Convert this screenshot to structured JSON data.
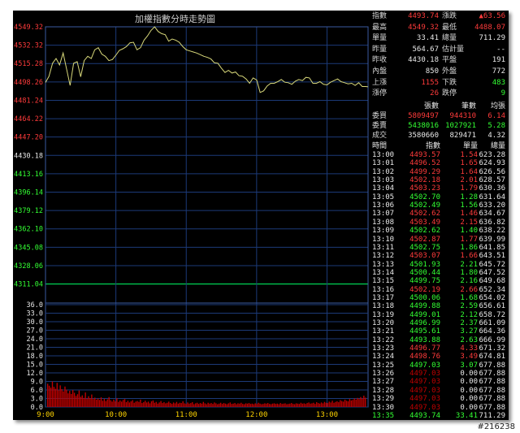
{
  "chart_data": {
    "type": "line",
    "title": "加權指數分時走勢圖",
    "xlabel": "",
    "ylabel": "",
    "ylim": [
      4303.2,
      4549.32
    ],
    "reference": 4311.04,
    "y_ticks": [
      {
        "v": 4549.32,
        "c": "red"
      },
      {
        "v": 4532.32,
        "c": "red"
      },
      {
        "v": 4515.28,
        "c": "red"
      },
      {
        "v": 4498.26,
        "c": "red"
      },
      {
        "v": 4481.24,
        "c": "red"
      },
      {
        "v": 4464.22,
        "c": "red"
      },
      {
        "v": 4447.2,
        "c": "red"
      },
      {
        "v": 4430.18,
        "c": "white"
      },
      {
        "v": 4413.16,
        "c": "green"
      },
      {
        "v": 4396.14,
        "c": "green"
      },
      {
        "v": 4379.12,
        "c": "green"
      },
      {
        "v": 4362.1,
        "c": "green"
      },
      {
        "v": 4345.08,
        "c": "green"
      },
      {
        "v": 4328.06,
        "c": "green"
      },
      {
        "v": 4311.04,
        "c": "green"
      }
    ],
    "x_ticks": [
      "9:00",
      "10:00",
      "11:00",
      "12:00",
      "13:00"
    ],
    "x_range_min": [
      0,
      275
    ],
    "series": [
      {
        "x": [
          0,
          3,
          6,
          9,
          12,
          15,
          18,
          21,
          24,
          27,
          30,
          33,
          36,
          39,
          42,
          45,
          48,
          51,
          54,
          57,
          60,
          63,
          66,
          69,
          72,
          75,
          78,
          81,
          84,
          87,
          90,
          93,
          96,
          99,
          102,
          105,
          108,
          111,
          114,
          117,
          120,
          123,
          126,
          129,
          132,
          135,
          138,
          141,
          144,
          147,
          150,
          153,
          156,
          159,
          162,
          165,
          168,
          171,
          174,
          177,
          180,
          183,
          186,
          189,
          192,
          195,
          198,
          201,
          204,
          207,
          210,
          213,
          216,
          219,
          222,
          225,
          228,
          231,
          234,
          237,
          240,
          243,
          246,
          249,
          252,
          255,
          258,
          261,
          264,
          267,
          270,
          273,
          275
        ],
        "y": [
          4497.8,
          4503.5,
          4515.5,
          4520.0,
          4514.0,
          4525.0,
          4510.0,
          4495.0,
          4515.5,
          4517.0,
          4503.0,
          4518.0,
          4522.0,
          4520.0,
          4528.0,
          4530.0,
          4524.0,
          4522.0,
          4518.0,
          4519.0,
          4523.0,
          4527.5,
          4529.0,
          4531.0,
          4534.5,
          4535.0,
          4528.0,
          4530.0,
          4537.0,
          4541.0,
          4546.0,
          4549.3,
          4545.0,
          4543.0,
          4542.0,
          4536.0,
          4538.0,
          4537.0,
          4535.0,
          4531.0,
          4528.0,
          4527.0,
          4526.0,
          4525.0,
          4523.5,
          4522.0,
          4521.0,
          4519.5,
          4516.0,
          4515.5,
          4511.0,
          4507.0,
          4509.0,
          4506.5,
          4507.5,
          4504.0,
          4503.5,
          4501.0,
          4497.0,
          4502.0,
          4500.0,
          4488.5,
          4490.0,
          4494.5,
          4497.0,
          4497.0,
          4498.5,
          4500.5,
          4498.0,
          4497.5,
          4496.0,
          4499.0,
          4500.5,
          4499.5,
          4502.5,
          4502.0,
          4497.0,
          4497.0,
          4498.5,
          4496.0,
          4495.5,
          4498.0,
          4499.5,
          4501.0,
          4498.5,
          4497.5,
          4496.5,
          4497.0,
          4495.0,
          4497.5,
          4494.0,
          4494.0,
          4493.7
        ]
      }
    ],
    "volume": {
      "ylim": [
        0,
        36
      ],
      "y_ticks": [
        "36.0",
        "33.0",
        "30.0",
        "27.0",
        "24.0",
        "21.0",
        "18.0",
        "15.0",
        "12.0",
        "9.0",
        "6.0",
        "3.0",
        "0.0"
      ],
      "values": [
        8.2,
        7.5,
        6.8,
        9.0,
        7.1,
        6.4,
        8.5,
        5.9,
        7.6,
        6.3,
        5.5,
        7.2,
        6.1,
        4.8,
        5.7,
        4.6,
        6.0,
        5.0,
        3.9,
        4.5,
        5.8,
        3.6,
        4.1,
        3.2,
        5.1,
        2.9,
        3.8,
        3.1,
        4.4,
        2.8,
        3.3,
        2.6,
        3.0,
        2.5,
        3.4,
        2.2,
        2.9,
        2.1,
        2.7,
        3.5,
        2.4,
        1.9,
        2.6,
        2.0,
        3.1,
        1.8,
        2.3,
        1.9,
        2.5,
        2.8,
        1.7,
        2.2,
        1.6,
        2.0,
        2.4,
        1.5,
        1.9,
        2.1,
        1.8,
        2.6,
        1.4,
        1.7,
        2.2,
        1.6,
        1.9,
        1.3,
        2.0,
        2.3,
        1.5,
        1.8,
        1.2,
        1.6,
        2.1,
        1.4,
        1.7,
        1.3,
        1.5,
        1.9,
        1.4,
        1.1,
        1.6,
        1.3,
        1.8,
        1.2,
        1.5,
        1.4,
        2.0,
        1.3,
        1.1,
        1.6,
        1.2,
        1.4,
        1.7,
        1.0,
        1.3,
        1.5,
        1.1,
        1.4,
        1.2,
        1.8,
        1.3,
        1.0,
        1.5,
        1.2,
        1.4,
        1.1,
        1.6,
        1.3,
        1.0,
        1.2,
        1.5,
        1.1,
        1.4,
        1.2,
        1.0,
        1.3,
        1.6,
        1.1,
        1.2,
        1.4,
        1.0,
        1.3,
        1.2,
        1.5,
        1.1,
        1.0,
        1.3,
        1.2,
        1.4,
        1.1,
        1.2,
        1.0,
        1.3,
        1.1,
        1.5,
        1.2,
        1.0,
        1.1,
        1.3,
        1.2,
        1.4,
        1.1,
        1.0,
        1.2,
        1.3,
        1.1,
        1.2,
        1.0,
        1.4,
        1.1,
        1.2,
        1.3,
        1.0,
        1.1,
        1.2,
        1.4,
        1.1,
        1.0,
        1.3,
        1.2,
        1.1,
        1.5,
        1.2,
        1.3,
        1.1,
        1.4,
        1.6,
        1.2,
        1.3,
        1.5,
        1.1,
        1.7,
        1.4,
        1.2,
        1.6,
        1.3,
        1.8,
        1.5,
        1.4,
        1.9,
        1.6,
        2.2,
        1.5,
        1.8,
        2.0,
        1.7,
        2.4,
        2.1,
        1.9,
        2.6,
        2.2,
        2.0,
        2.8,
        2.3,
        2.5,
        3.0,
        2.6,
        3.2,
        2.8,
        3.5,
        3.0,
        4.0,
        3.3
      ]
    }
  },
  "panel": {
    "stats": [
      {
        "l1": "指數",
        "v1": "4493.74",
        "c1": "red",
        "l2": "漲跌",
        "v2": "▲63.56",
        "c2": "red"
      },
      {
        "l1": "最高",
        "v1": "4549.32",
        "c1": "red",
        "l2": "最低",
        "v2": "4488.07",
        "c2": "red"
      },
      {
        "l1": "單量",
        "v1": "33.41",
        "c1": "white",
        "l2": "總量",
        "v2": "711.29",
        "c2": "white"
      },
      {
        "l1": "昨量",
        "v1": "564.67",
        "c1": "white",
        "l2": "估計量",
        "v2": "--",
        "c2": "white"
      },
      {
        "l1": "昨收",
        "v1": "4430.18",
        "c1": "white",
        "l2": "平盤",
        "v2": "191",
        "c2": "white"
      },
      {
        "l1": "內盤",
        "v1": "850",
        "c1": "white",
        "l2": "外盤",
        "v2": "772",
        "c2": "white"
      },
      {
        "l1": "上漲",
        "v1": "1155",
        "c1": "red",
        "l2": "下跌",
        "v2": "483",
        "c2": "green"
      },
      {
        "l1": "漲停",
        "v1": "26",
        "c1": "red",
        "l2": "跌停",
        "v2": "9",
        "c2": "green"
      }
    ],
    "order_header": [
      "張數",
      "筆數",
      "均張"
    ],
    "orders": [
      {
        "label": "委買",
        "a": "5809497",
        "ac": "red",
        "b": "944310",
        "bc": "red",
        "c": "6.14",
        "cc": "red"
      },
      {
        "label": "委賣",
        "a": "5438016",
        "ac": "green",
        "b": "1027921",
        "bc": "green",
        "c": "5.28",
        "cc": "green"
      },
      {
        "label": "成交",
        "a": "3580660",
        "ac": "white",
        "b": "829471",
        "bc": "white",
        "c": "4.32",
        "cc": "white"
      }
    ],
    "tick_header": [
      "時間",
      "指數",
      "單量",
      "總量"
    ],
    "ticks": [
      {
        "t": "13:00",
        "i": "4493.57",
        "u": "1.54",
        "s": "623.28",
        "c": "red"
      },
      {
        "t": "13:01",
        "i": "4496.52",
        "u": "1.65",
        "s": "624.93",
        "c": "red"
      },
      {
        "t": "13:02",
        "i": "4499.29",
        "u": "1.64",
        "s": "626.56",
        "c": "red"
      },
      {
        "t": "13:03",
        "i": "4502.18",
        "u": "2.01",
        "s": "628.57",
        "c": "red"
      },
      {
        "t": "13:04",
        "i": "4503.23",
        "u": "1.79",
        "s": "630.36",
        "c": "red"
      },
      {
        "t": "13:05",
        "i": "4502.70",
        "u": "1.28",
        "s": "631.64",
        "c": "green"
      },
      {
        "t": "13:06",
        "i": "4502.49",
        "u": "1.56",
        "s": "633.20",
        "c": "green"
      },
      {
        "t": "13:07",
        "i": "4502.62",
        "u": "1.46",
        "s": "634.67",
        "c": "red"
      },
      {
        "t": "13:08",
        "i": "4503.49",
        "u": "2.15",
        "s": "636.82",
        "c": "red"
      },
      {
        "t": "13:09",
        "i": "4502.62",
        "u": "1.40",
        "s": "638.22",
        "c": "green"
      },
      {
        "t": "13:10",
        "i": "4502.87",
        "u": "1.77",
        "s": "639.99",
        "c": "red"
      },
      {
        "t": "13:11",
        "i": "4502.75",
        "u": "1.86",
        "s": "641.85",
        "c": "green"
      },
      {
        "t": "13:12",
        "i": "4503.07",
        "u": "1.66",
        "s": "643.51",
        "c": "red"
      },
      {
        "t": "13:13",
        "i": "4501.93",
        "u": "2.21",
        "s": "645.72",
        "c": "green"
      },
      {
        "t": "13:14",
        "i": "4500.44",
        "u": "1.80",
        "s": "647.52",
        "c": "green"
      },
      {
        "t": "13:15",
        "i": "4499.75",
        "u": "2.16",
        "s": "649.68",
        "c": "green"
      },
      {
        "t": "13:16",
        "i": "4502.19",
        "u": "2.66",
        "s": "652.34",
        "c": "red"
      },
      {
        "t": "13:17",
        "i": "4500.06",
        "u": "1.68",
        "s": "654.02",
        "c": "green"
      },
      {
        "t": "13:18",
        "i": "4499.88",
        "u": "2.59",
        "s": "656.61",
        "c": "green"
      },
      {
        "t": "13:19",
        "i": "4499.01",
        "u": "2.12",
        "s": "658.72",
        "c": "green"
      },
      {
        "t": "13:20",
        "i": "4496.99",
        "u": "2.37",
        "s": "661.09",
        "c": "green"
      },
      {
        "t": "13:21",
        "i": "4495.61",
        "u": "3.27",
        "s": "664.36",
        "c": "green"
      },
      {
        "t": "13:22",
        "i": "4493.88",
        "u": "2.63",
        "s": "666.99",
        "c": "green"
      },
      {
        "t": "13:23",
        "i": "4496.77",
        "u": "4.33",
        "s": "671.32",
        "c": "red"
      },
      {
        "t": "13:24",
        "i": "4498.76",
        "u": "3.49",
        "s": "674.81",
        "c": "red"
      },
      {
        "t": "13:25",
        "i": "4497.03",
        "u": "3.07",
        "s": "677.88",
        "c": "green"
      },
      {
        "t": "13:26",
        "i": "4497.03",
        "u": "0.00",
        "s": "677.88",
        "c": "white"
      },
      {
        "t": "13:27",
        "i": "4497.03",
        "u": "0.00",
        "s": "677.88",
        "c": "white"
      },
      {
        "t": "13:28",
        "i": "4497.03",
        "u": "0.00",
        "s": "677.88",
        "c": "white"
      },
      {
        "t": "13:29",
        "i": "4497.03",
        "u": "0.00",
        "s": "677.88",
        "c": "white"
      },
      {
        "t": "13:30",
        "i": "4497.03",
        "u": "0.00",
        "s": "677.88",
        "c": "white"
      },
      {
        "t": "13:35",
        "i": "4493.74",
        "u": "33.41",
        "s": "711.29",
        "c": "green"
      }
    ]
  },
  "watermark": "#216238",
  "colors": {
    "price_line": "#d8d87a",
    "grid": "#1c3a78",
    "reference": "#00ff66",
    "volume_bar": "#c00000",
    "bg": "#000000"
  }
}
